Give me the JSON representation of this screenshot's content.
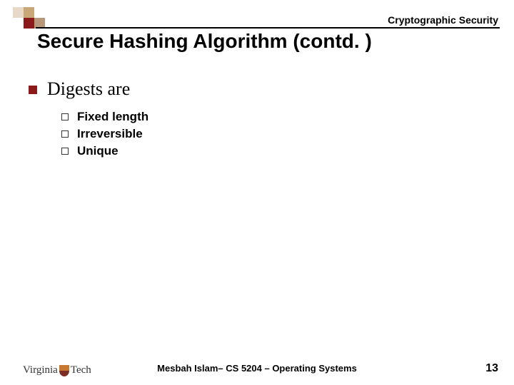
{
  "header": {
    "topic_label": "Cryptographic Security",
    "title": "Secure Hashing Algorithm (contd. )"
  },
  "colors": {
    "accent_maroon": "#8b1a1a",
    "sq_light": "#e8d8c8",
    "sq_tan": "#c8a878",
    "sq_mid": "#b8977a",
    "line": "#000000",
    "text": "#000000",
    "background": "#ffffff"
  },
  "content": {
    "bullet_marker": "filled-square",
    "heading": "Digests are",
    "sub_marker": "hollow-square",
    "items": [
      "Fixed length",
      "Irreversible",
      "Unique"
    ]
  },
  "footer": {
    "logo_left": "Virginia",
    "logo_right": "Tech",
    "center": "Mesbah Islam– CS 5204 – Operating Systems",
    "page_number": "13"
  }
}
